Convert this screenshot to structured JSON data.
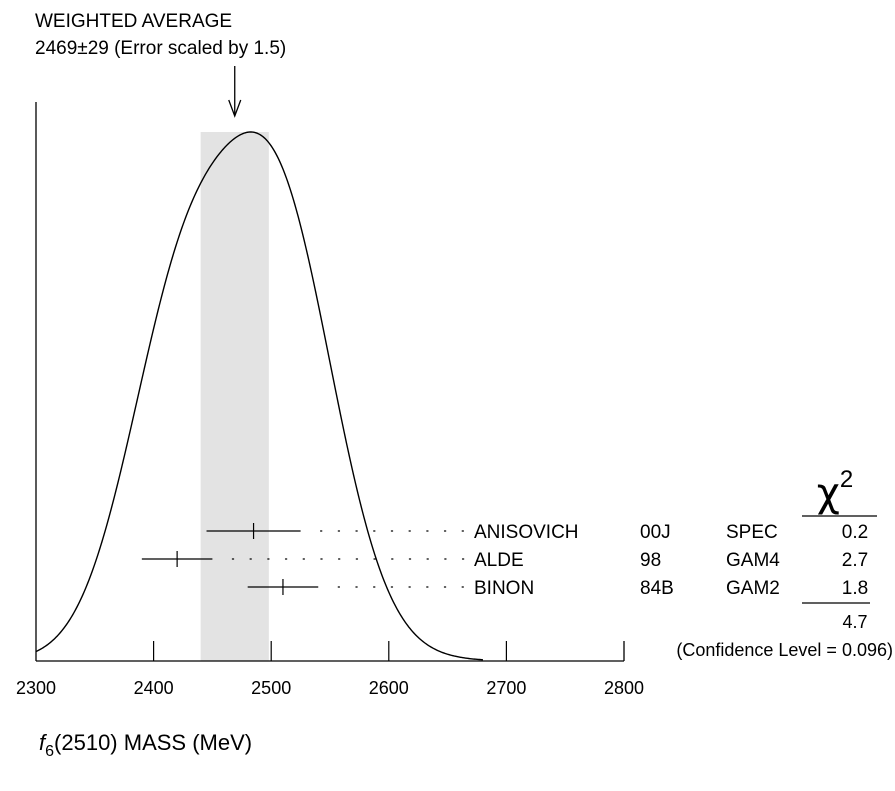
{
  "chart_data": {
    "type": "ideogram",
    "header_title": "WEIGHTED AVERAGE",
    "header_value": "2469±29 (Error scaled by 1.5)",
    "weighted_average": 2469,
    "weighted_error": 29,
    "band": [
      2440,
      2498
    ],
    "xlim": [
      2300,
      2800
    ],
    "ylim": [
      0,
      1
    ],
    "ticks": [
      2300,
      2400,
      2500,
      2600,
      2700,
      2800
    ],
    "tick_labels": [
      "2300",
      "2400",
      "2500",
      "2600",
      "2700",
      "2800"
    ],
    "xlabel_symbol": "f",
    "xlabel_sub": "6",
    "xlabel_text": "(2510) MASS (MeV)",
    "chi2_header": "χ",
    "chi2_power": "2",
    "measurements": [
      {
        "author": "ANISOVICH",
        "year": "00J",
        "tech": "SPEC",
        "chi2": "0.2",
        "value": 2485,
        "err": 40
      },
      {
        "author": "ALDE",
        "year": "98",
        "tech": "GAM4",
        "chi2": "2.7",
        "value": 2420,
        "err": 30
      },
      {
        "author": "BINON",
        "year": "84B",
        "tech": "GAM2",
        "chi2": "1.8",
        "value": 2510,
        "err": 30
      }
    ],
    "chi2_total": "4.7",
    "confidence_level": "(Confidence Level = 0.096)"
  }
}
